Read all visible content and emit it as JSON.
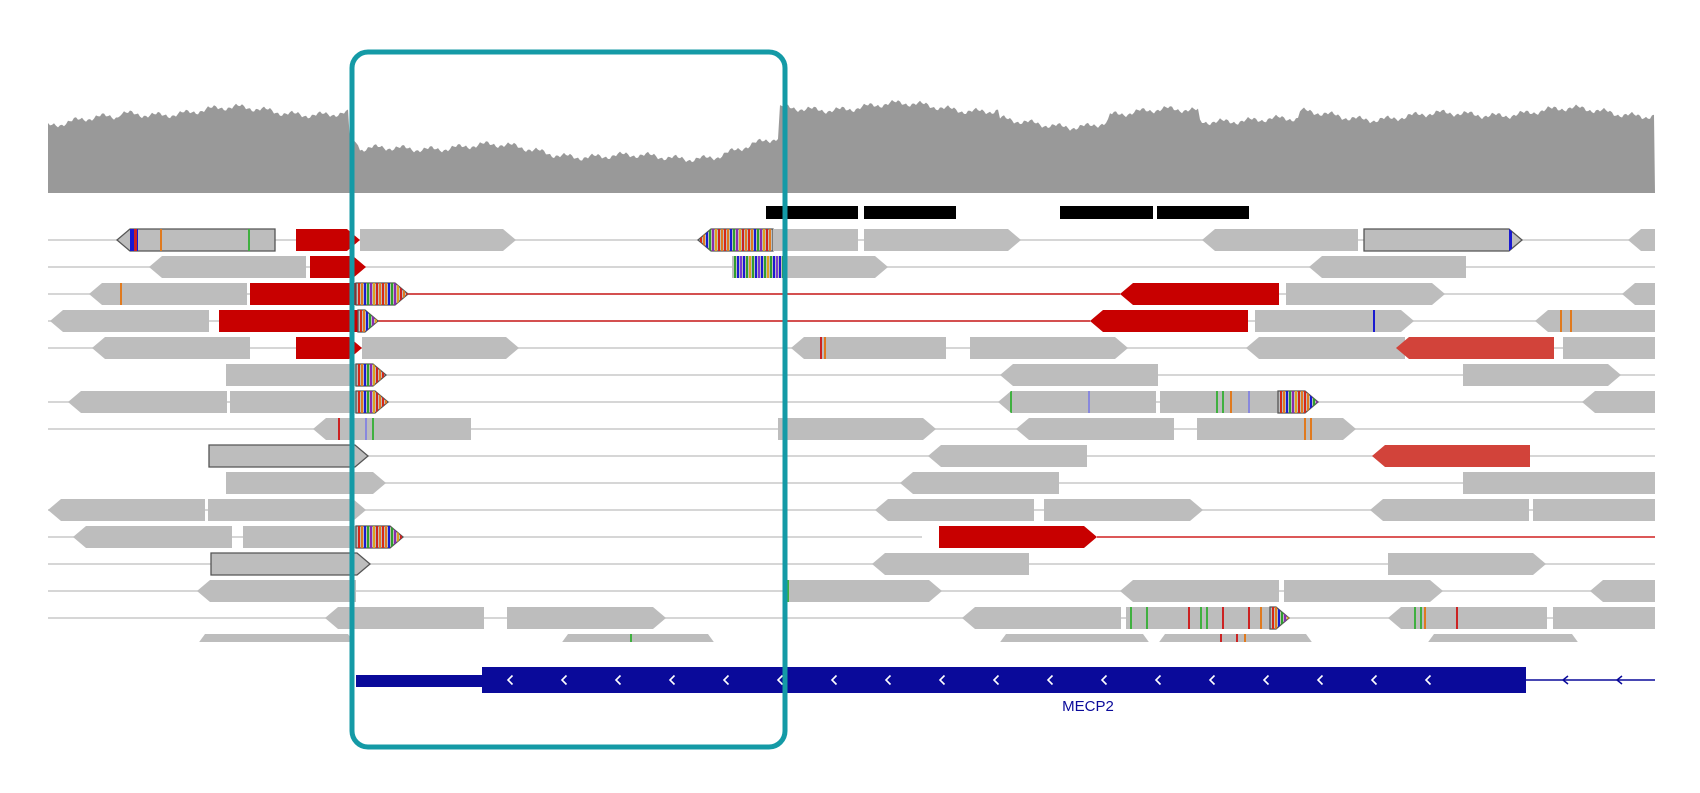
{
  "gene_track": {
    "gene_name": "MECP2",
    "strand": "-",
    "color": "#0a0a9a"
  },
  "colors": {
    "coverage": "#999999",
    "read": "#bdbdbd",
    "read_outline": "#555555",
    "split_read": "#c80000",
    "split_read_alt": "#d2433a",
    "connector_gray": "#c8c8c8",
    "connector_red": "#d02020",
    "region_block": "#000000",
    "highlight": "#149aa6"
  },
  "icons": {
    "strand_arrow": "chevron-left-icon"
  }
}
